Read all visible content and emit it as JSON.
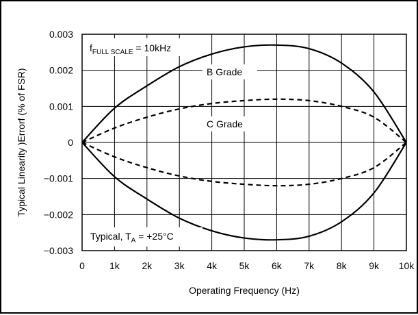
{
  "chart_data": {
    "type": "line",
    "title": "",
    "xlabel": "Operating Frequency (Hz)",
    "ylabel": "Typical Linearity )Errorf (% of FSR)",
    "xlim": [
      0,
      10000
    ],
    "ylim": [
      -0.003,
      0.003
    ],
    "grid": true,
    "x_ticks": [
      0,
      1000,
      2000,
      3000,
      4000,
      5000,
      6000,
      7000,
      8000,
      9000,
      10000
    ],
    "x_tick_labels": [
      "0",
      "1k",
      "2k",
      "3k",
      "4k",
      "5k",
      "6k",
      "7k",
      "8k",
      "9k",
      "10k"
    ],
    "y_ticks": [
      0.003,
      0.002,
      0.001,
      0,
      -0.001,
      -0.002,
      -0.003
    ],
    "y_tick_labels": [
      "0.003",
      "0.002",
      "0.001",
      "0",
      "−0.001",
      "−0.002",
      "−0.003"
    ],
    "x": [
      0,
      1000,
      2000,
      3000,
      4000,
      5000,
      6000,
      7000,
      8000,
      9000,
      10000
    ],
    "series": [
      {
        "name": "B Grade",
        "style": "solid",
        "values": [
          0,
          0.00095,
          0.00157,
          0.0021,
          0.00245,
          0.00265,
          0.0027,
          0.0026,
          0.0022,
          0.0014,
          0
        ]
      },
      {
        "name": "B Grade (negative bound)",
        "style": "solid",
        "values": [
          0,
          -0.00095,
          -0.00157,
          -0.0021,
          -0.00245,
          -0.00265,
          -0.0027,
          -0.0026,
          -0.0022,
          -0.0014,
          0
        ]
      },
      {
        "name": "C Grade",
        "style": "dashed",
        "values": [
          0,
          0.0004,
          0.0007,
          0.00093,
          0.00108,
          0.00116,
          0.0012,
          0.00116,
          0.001,
          0.0007,
          0
        ]
      },
      {
        "name": "C Grade (negative bound)",
        "style": "dashed",
        "values": [
          0,
          -0.0004,
          -0.0007,
          -0.00093,
          -0.00108,
          -0.00116,
          -0.0012,
          -0.00116,
          -0.001,
          -0.0007,
          0
        ]
      }
    ],
    "annotations": {
      "full_scale_f": "f",
      "full_scale_sub": "FULL SCALE",
      "full_scale_rest": " = 10kHz",
      "b_grade": "B Grade",
      "c_grade": "C Grade",
      "typical_prefix": "Typical, T",
      "typical_sub": "A",
      "typical_rest": " = +25°C"
    },
    "colors": {
      "line": "#000000",
      "grid": "#000000",
      "background": "#ffffff"
    }
  }
}
